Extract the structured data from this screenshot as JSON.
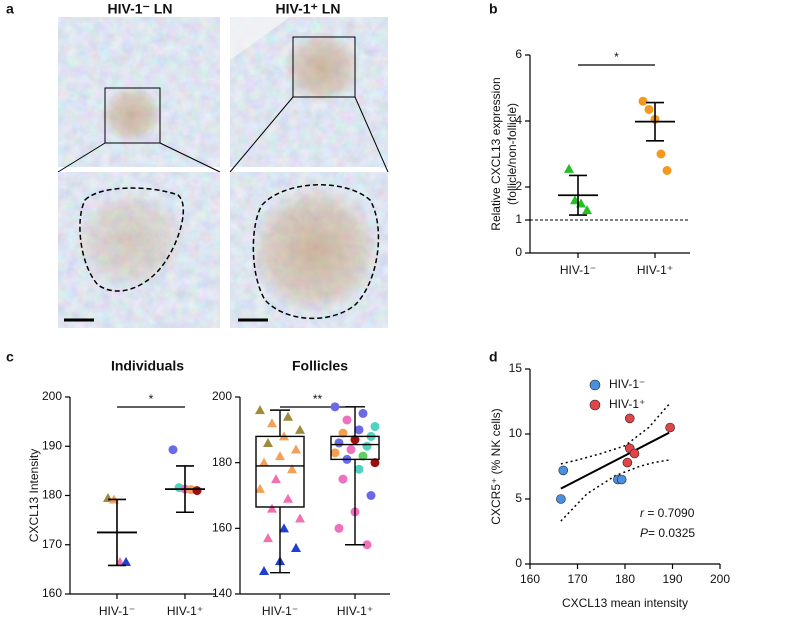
{
  "panel_labels": [
    "a",
    "b",
    "c",
    "d"
  ],
  "panel_a": {
    "titles": [
      "HIV-1⁻ LN",
      "HIV-1⁺ LN"
    ]
  },
  "chart_data": [
    {
      "type": "dot",
      "ylabel": [
        "Relative CXCL13 expression",
        "(follicle/non-follicle)"
      ],
      "categories": [
        "HIV-1⁻",
        "HIV-1⁺"
      ],
      "groups": [
        {
          "marker": "triangle",
          "points": [
            2.55,
            1.6,
            1.5,
            1.3
          ],
          "colors": [
            "#22c022",
            "#22c022",
            "#22c022",
            "#22c022"
          ],
          "mean": 1.75,
          "error": 0.6
        },
        {
          "marker": "circle",
          "points": [
            4.6,
            4.35,
            4.05,
            3.0,
            2.5
          ],
          "colors": [
            "#f39a1e",
            "#f39a1e",
            "#f39a1e",
            "#f39a1e",
            "#f39a1e"
          ],
          "mean": 3.98,
          "error": 0.58
        }
      ],
      "ylim": [
        0,
        6
      ],
      "yticks": [
        0,
        1,
        2,
        4,
        6
      ],
      "reference_line": 1,
      "significance": "*"
    },
    {
      "type": "dot",
      "title": "Individuals",
      "ylabel": [
        "CXCL13 Intensity"
      ],
      "categories": [
        "HIV-1⁻",
        "HIV-1⁺"
      ],
      "groups": [
        {
          "marker": "triangle",
          "points": [
            179.5,
            179.2,
            166.5,
            166.5
          ],
          "colors": [
            "#a08a3c",
            "#f3a05a",
            "#f070b0",
            "#1f3fd0"
          ],
          "mean": 172.5,
          "error": 6.7
        },
        {
          "marker": "circle",
          "points": [
            189.3,
            181.6,
            181.3,
            181.2,
            181.0
          ],
          "colors": [
            "#6a6ae8",
            "#4fd3c0",
            "#f070c0",
            "#f5a050",
            "#9a1010"
          ],
          "mean": 181.3,
          "error": 4.7
        }
      ],
      "ylim": [
        160,
        200
      ],
      "yticks": [
        160,
        170,
        180,
        190,
        200
      ],
      "significance": "*"
    },
    {
      "type": "box",
      "title": "Follicles",
      "categories": [
        "HIV-1⁻",
        "HIV-1⁺"
      ],
      "groups": [
        {
          "marker": "triangle",
          "min": 146.5,
          "q1": 166.5,
          "median": 179,
          "q3": 188,
          "max": 196,
          "points": [
            196,
            194,
            192,
            190,
            188,
            186,
            184,
            182,
            180,
            178,
            175,
            172,
            169,
            166,
            163,
            160,
            157,
            154,
            150,
            147
          ],
          "colors": [
            "#a08a3c",
            "#a08a3c",
            "#f3a05a",
            "#a08a3c",
            "#f3a05a",
            "#a08a3c",
            "#f3a05a",
            "#f3a05a",
            "#f3a05a",
            "#f3a05a",
            "#f070b0",
            "#f3a05a",
            "#f070b0",
            "#f070b0",
            "#f070b0",
            "#1f3fd0",
            "#f070b0",
            "#1f3fd0",
            "#1f3fd0",
            "#1f3fd0"
          ]
        },
        {
          "marker": "circle",
          "min": 155,
          "q1": 181,
          "median": 185.5,
          "q3": 188,
          "max": 197,
          "points": [
            197,
            195,
            193,
            191,
            190,
            189,
            188,
            187,
            186,
            185,
            184,
            183,
            182,
            181,
            180,
            178,
            175,
            170,
            165,
            160,
            155
          ],
          "colors": [
            "#6a6ae8",
            "#6a6ae8",
            "#f070c0",
            "#4fd3c0",
            "#6a6ae8",
            "#f5a050",
            "#4fd3c0",
            "#9a1010",
            "#6a6ae8",
            "#4fd3c0",
            "#f070c0",
            "#f5a050",
            "#60d060",
            "#6a6ae8",
            "#9a1010",
            "#4fd3c0",
            "#f070c0",
            "#6a6ae8",
            "#f070c0",
            "#f070c0",
            "#f070c0"
          ]
        }
      ],
      "ylim": [
        140,
        200
      ],
      "yticks": [
        140,
        160,
        180,
        200
      ],
      "significance": "**"
    },
    {
      "type": "scatter",
      "xlabel": "CXCL13 mean intensity",
      "ylabel": [
        "CXCR5⁺ (% NK cells)"
      ],
      "series": [
        {
          "name": "HIV-1⁻",
          "color": "#4a90e2",
          "x": [
            166.5,
            167,
            178.5,
            179.3
          ],
          "values": [
            5.0,
            7.2,
            6.5,
            6.5
          ]
        },
        {
          "name": "HIV-1⁺",
          "color": "#e0454a",
          "x": [
            181,
            181,
            180.5,
            182,
            189.5
          ],
          "values": [
            11.2,
            8.9,
            7.8,
            8.5,
            10.5
          ]
        }
      ],
      "fit": {
        "x": [
          166.5,
          189.3
        ],
        "y": [
          5.8,
          10.1
        ]
      },
      "ci_upper": {
        "x": [
          166.5,
          170,
          175,
          180,
          185,
          189.3
        ],
        "y": [
          7.7,
          8.0,
          8.5,
          9.1,
          10.5,
          12.3
        ]
      },
      "ci_lower": {
        "x": [
          166.5,
          172,
          178,
          183,
          186,
          189.3
        ],
        "y": [
          3.3,
          5.4,
          6.8,
          7.5,
          7.8,
          8.0
        ]
      },
      "annotations": [
        {
          "symbol": "r",
          "text": " = 0.7090"
        },
        {
          "symbol": "P",
          "text": "= 0.0325"
        }
      ],
      "xlim": [
        160,
        200
      ],
      "xticks": [
        160,
        170,
        180,
        190,
        200
      ],
      "ylim": [
        0,
        15
      ],
      "yticks": [
        0,
        5,
        10,
        15
      ],
      "legend": "upper right"
    }
  ]
}
